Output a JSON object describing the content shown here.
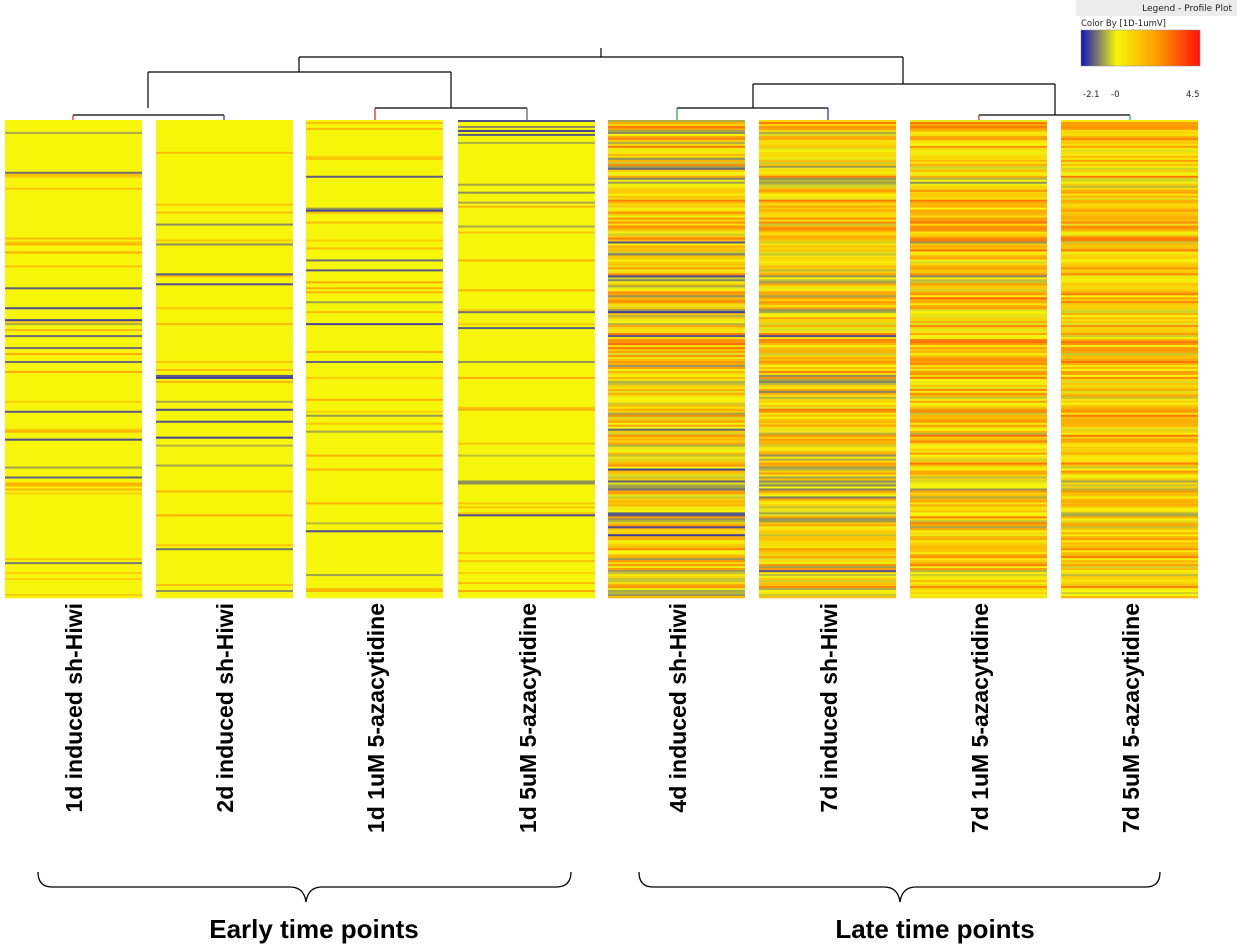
{
  "chart_data": {
    "type": "heatmap",
    "legend": {
      "header": "Legend - Profile Plot",
      "color_by": "Color By [1D-1umV]",
      "ticks": [
        "-2.1",
        "-0",
        "4.5"
      ],
      "min": -2.1,
      "mid": 0,
      "max": 4.5,
      "colors": [
        "#1010c0",
        "#f6f60a",
        "#ff9900",
        "#ff1010"
      ]
    },
    "columns": [
      "1d induced sh-Hiwi",
      "2d induced sh-Hiwi",
      "1d 1uM 5-azacytidine",
      "1d 5uM 5-azacytidine",
      "4d induced sh-Hiwi",
      "7d induced sh-Hiwi",
      "7d 1uM 5-azacytidine",
      "7d 5uM 5-azacytidine"
    ],
    "column_clusters": [
      {
        "label": "Early time points",
        "columns": [
          0,
          1,
          2,
          3
        ]
      },
      {
        "label": "Late time points",
        "columns": [
          4,
          5,
          6,
          7
        ]
      }
    ],
    "dendrogram": [
      {
        "merge": [
          0,
          1
        ]
      },
      {
        "merge": [
          2,
          3
        ]
      },
      {
        "merge": [
          4,
          5
        ]
      },
      {
        "merge": [
          6,
          7
        ]
      },
      {
        "merge": [
          "0-1",
          "2-3"
        ]
      },
      {
        "merge": [
          "4-5",
          "6-7"
        ]
      },
      {
        "merge": [
          "early",
          "late"
        ]
      }
    ],
    "approx_rows": 240,
    "column_profile": [
      {
        "base": 0.05,
        "spread": 0.35
      },
      {
        "base": 0.05,
        "spread": 0.3
      },
      {
        "base": 0.03,
        "spread": 0.25
      },
      {
        "base": 0.03,
        "spread": 0.25
      },
      {
        "base": 0.55,
        "spread": 1.6
      },
      {
        "base": 0.6,
        "spread": 1.5
      },
      {
        "base": 0.9,
        "spread": 1.4
      },
      {
        "base": 0.85,
        "spread": 1.3
      }
    ]
  }
}
